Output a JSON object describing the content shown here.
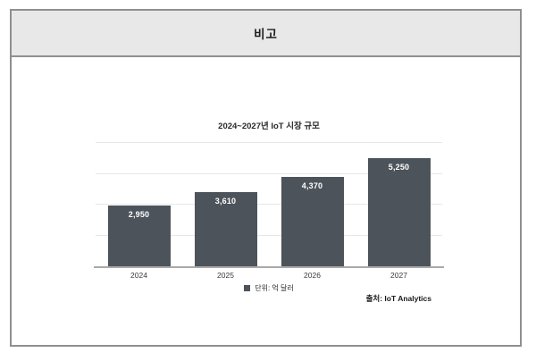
{
  "panel": {
    "header_title": "비고"
  },
  "chart": {
    "title": "2024~2027년 IoT 시장 규모",
    "legend_label": "단위: 억 달러",
    "source": "출처: IoT Analytics"
  },
  "chart_data": {
    "type": "bar",
    "title": "2024~2027년 IoT 시장 규모",
    "categories": [
      "2024",
      "2025",
      "2026",
      "2027"
    ],
    "values": [
      2950,
      3610,
      4370,
      5250
    ],
    "value_labels": [
      "2,950",
      "3,610",
      "4,370",
      "5,250"
    ],
    "xlabel": "",
    "ylabel": "",
    "unit_legend": "단위: 억 달러",
    "source": "출처: IoT Analytics",
    "ylim": [
      0,
      6000
    ],
    "gridline_interval": 1500,
    "grid": true,
    "legend_position": "bottom-center",
    "y_axis_labels_visible": false
  },
  "colors": {
    "bar": "#4d535b",
    "bar_value_text": "#ffffff",
    "header_background": "#e8e8e8",
    "panel_border": "#8f8f8f",
    "gridline": "#e7e7e7",
    "axis_line": "#a9a9a9"
  }
}
